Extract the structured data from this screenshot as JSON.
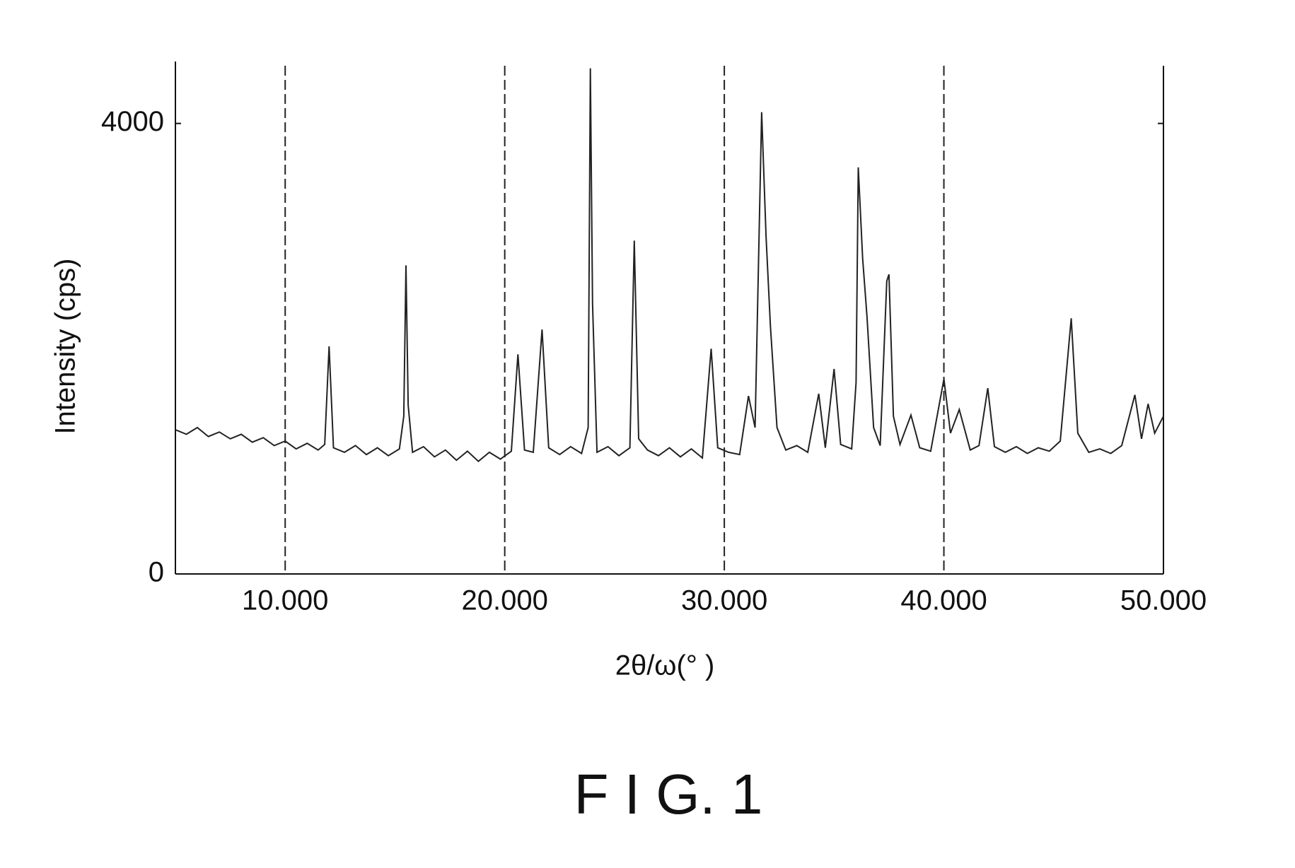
{
  "chart_data": {
    "type": "line",
    "caption": "F I G. 1",
    "xlabel": "2θ/ω(° )",
    "ylabel": "Intensity (cps)",
    "x": [
      5.0,
      5.5,
      6.0,
      6.5,
      7.0,
      7.5,
      8.0,
      8.5,
      9.0,
      9.5,
      10.0,
      10.5,
      11.0,
      11.5,
      11.8,
      12.0,
      12.2,
      12.7,
      13.2,
      13.7,
      14.2,
      14.7,
      15.2,
      15.4,
      15.5,
      15.6,
      15.8,
      16.3,
      16.8,
      17.3,
      17.8,
      18.3,
      18.8,
      19.3,
      19.8,
      20.3,
      20.6,
      20.9,
      21.3,
      21.7,
      22.0,
      22.5,
      23.0,
      23.5,
      23.8,
      23.9,
      24.0,
      24.2,
      24.7,
      25.2,
      25.7,
      25.9,
      26.1,
      26.5,
      27.0,
      27.5,
      28.0,
      28.5,
      29.0,
      29.4,
      29.7,
      30.2,
      30.7,
      31.1,
      31.4,
      31.7,
      31.9,
      32.1,
      32.4,
      32.8,
      33.3,
      33.8,
      34.3,
      34.6,
      35.0,
      35.3,
      35.8,
      36.0,
      36.1,
      36.3,
      36.5,
      36.8,
      37.1,
      37.4,
      37.5,
      37.7,
      38.0,
      38.5,
      38.9,
      39.4,
      40.0,
      40.3,
      40.7,
      41.2,
      41.6,
      42.0,
      42.3,
      42.8,
      43.3,
      43.8,
      44.3,
      44.8,
      45.3,
      45.8,
      46.1,
      46.6,
      47.1,
      47.6,
      48.1,
      48.7,
      49.0,
      49.3,
      49.6,
      50.0
    ],
    "values": [
      1280,
      1240,
      1300,
      1220,
      1260,
      1200,
      1240,
      1170,
      1210,
      1140,
      1180,
      1110,
      1160,
      1100,
      1150,
      2020,
      1120,
      1080,
      1140,
      1060,
      1120,
      1050,
      1110,
      1400,
      2740,
      1500,
      1080,
      1130,
      1040,
      1100,
      1010,
      1090,
      1000,
      1080,
      1020,
      1090,
      1950,
      1100,
      1080,
      2170,
      1120,
      1060,
      1130,
      1070,
      1300,
      4490,
      2400,
      1080,
      1130,
      1050,
      1120,
      2960,
      1200,
      1100,
      1050,
      1120,
      1040,
      1110,
      1030,
      2000,
      1120,
      1080,
      1060,
      1580,
      1300,
      4100,
      3000,
      2200,
      1300,
      1100,
      1140,
      1080,
      1600,
      1120,
      1820,
      1150,
      1110,
      1700,
      3610,
      2800,
      2280,
      1300,
      1140,
      2600,
      2660,
      1400,
      1150,
      1410,
      1120,
      1090,
      1730,
      1250,
      1460,
      1100,
      1140,
      1650,
      1130,
      1080,
      1130,
      1070,
      1120,
      1090,
      1180,
      2270,
      1250,
      1080,
      1110,
      1070,
      1140,
      1590,
      1200,
      1510,
      1250,
      1400
    ],
    "color": "#222222",
    "xlim": [
      5,
      50
    ],
    "ylim": [
      0,
      4550
    ],
    "xticks": [
      {
        "value": 10,
        "label": "10.000"
      },
      {
        "value": 20,
        "label": "20.000"
      },
      {
        "value": 30,
        "label": "30.000"
      },
      {
        "value": 40,
        "label": "40.000"
      },
      {
        "value": 50,
        "label": "50.000"
      }
    ],
    "yticks": [
      0,
      4000
    ],
    "grid": true
  }
}
